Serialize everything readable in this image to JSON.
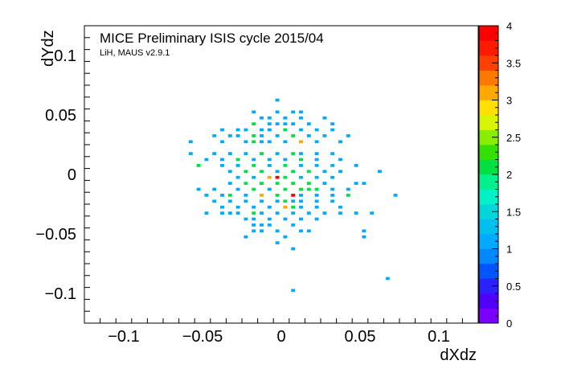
{
  "chart_data": {
    "type": "heatmap",
    "title": "MICE Preliminary ISIS cycle 2015/04",
    "subtitle": "LiH, MAUS v2.9.1",
    "xlabel": "dXdz",
    "ylabel": "dYdz",
    "xlim": [
      -0.125,
      0.125
    ],
    "ylim": [
      -0.125,
      0.125
    ],
    "x_ticks": [
      -0.1,
      -0.05,
      0,
      0.05,
      0.1
    ],
    "y_ticks": [
      -0.1,
      -0.05,
      0,
      0.05,
      0.1
    ],
    "x_tick_labels": [
      "−0.1",
      "−0.05",
      "0",
      "0.05",
      "0.1"
    ],
    "y_tick_labels": [
      "−0.1",
      "−0.05",
      "0",
      "0.05",
      "0.1"
    ],
    "bin_width": 0.0025,
    "zlim": [
      0,
      4
    ],
    "z_ticks": [
      0,
      0.5,
      1,
      1.5,
      2,
      2.5,
      3,
      3.5,
      4
    ],
    "z_tick_labels": [
      "0",
      "0.5",
      "1",
      "1.5",
      "2",
      "2.5",
      "3",
      "3.5",
      "4"
    ],
    "palette": [
      "#7a00ff",
      "#5000ff",
      "#2b22ff",
      "#0055ff",
      "#0088ff",
      "#00aaff",
      "#00bfee",
      "#00d7dd",
      "#00f0c8",
      "#00f090",
      "#00e040",
      "#33e000",
      "#88ee00",
      "#d8f500",
      "#ffe000",
      "#ffa800",
      "#ff7800",
      "#ff4000",
      "#ff1a00",
      "#ff0000"
    ],
    "cells": [
      [
        -0.0025,
        0.0625,
        1
      ],
      [
        -0.0175,
        0.0525,
        1
      ],
      [
        -0.0025,
        0.0525,
        1
      ],
      [
        0.0075,
        0.0525,
        1
      ],
      [
        0.0125,
        0.0525,
        1
      ],
      [
        -0.0125,
        0.0475,
        1
      ],
      [
        -0.0075,
        0.0475,
        1
      ],
      [
        0.0025,
        0.0475,
        1
      ],
      [
        0.0125,
        0.0475,
        1
      ],
      [
        0.0275,
        0.0475,
        1
      ],
      [
        -0.0175,
        0.0425,
        2
      ],
      [
        -0.0075,
        0.0425,
        1
      ],
      [
        -0.0025,
        0.0425,
        1
      ],
      [
        0.0025,
        0.0425,
        1
      ],
      [
        0.0075,
        0.0425,
        1
      ],
      [
        0.0175,
        0.0425,
        1
      ],
      [
        0.0325,
        0.0425,
        1
      ],
      [
        -0.0375,
        0.0375,
        1
      ],
      [
        -0.0275,
        0.0375,
        1
      ],
      [
        -0.0225,
        0.0375,
        1
      ],
      [
        -0.0125,
        0.0375,
        1
      ],
      [
        -0.0075,
        0.0375,
        1
      ],
      [
        0.0025,
        0.0375,
        2
      ],
      [
        0.0125,
        0.0375,
        1
      ],
      [
        0.0225,
        0.0375,
        1
      ],
      [
        0.0325,
        0.0375,
        1
      ],
      [
        -0.0425,
        0.0325,
        1
      ],
      [
        -0.0325,
        0.0325,
        1
      ],
      [
        -0.0275,
        0.0325,
        1
      ],
      [
        -0.0175,
        0.0325,
        2
      ],
      [
        -0.0125,
        0.0325,
        1
      ],
      [
        -0.0025,
        0.0325,
        1
      ],
      [
        0.0075,
        0.0325,
        2
      ],
      [
        0.0175,
        0.0325,
        1
      ],
      [
        0.0275,
        0.0325,
        1
      ],
      [
        0.0425,
        0.0325,
        1
      ],
      [
        -0.0575,
        0.0275,
        1
      ],
      [
        -0.0375,
        0.0275,
        1
      ],
      [
        -0.0225,
        0.0275,
        1
      ],
      [
        -0.0175,
        0.0275,
        2
      ],
      [
        -0.0125,
        0.0275,
        1
      ],
      [
        -0.0075,
        0.0275,
        1
      ],
      [
        0.0025,
        0.0275,
        1
      ],
      [
        0.0125,
        0.0275,
        3
      ],
      [
        0.0225,
        0.0275,
        1
      ],
      [
        0.0375,
        0.0275,
        1
      ],
      [
        -0.0575,
        0.0175,
        1
      ],
      [
        -0.0425,
        0.0175,
        1
      ],
      [
        -0.0325,
        0.0175,
        1
      ],
      [
        -0.0225,
        0.0175,
        1
      ],
      [
        -0.0125,
        0.0175,
        2
      ],
      [
        -0.0025,
        0.0175,
        1
      ],
      [
        0.0075,
        0.0175,
        2
      ],
      [
        0.0125,
        0.0175,
        1
      ],
      [
        0.0225,
        0.0175,
        1
      ],
      [
        0.0325,
        0.0175,
        1
      ],
      [
        -0.0475,
        0.0125,
        1
      ],
      [
        -0.0375,
        0.0125,
        1
      ],
      [
        -0.0275,
        0.0125,
        2
      ],
      [
        -0.0175,
        0.0125,
        1
      ],
      [
        -0.0075,
        0.0125,
        1
      ],
      [
        0.0025,
        0.0125,
        1
      ],
      [
        0.0125,
        0.0125,
        2
      ],
      [
        0.0225,
        0.0125,
        1
      ],
      [
        0.0375,
        0.0125,
        1
      ],
      [
        -0.0525,
        0.0075,
        2
      ],
      [
        -0.0375,
        0.0075,
        1
      ],
      [
        -0.0275,
        0.0075,
        1
      ],
      [
        -0.0175,
        0.0075,
        2
      ],
      [
        -0.0075,
        0.0075,
        1
      ],
      [
        0.0025,
        0.0075,
        2
      ],
      [
        0.0125,
        0.0075,
        1
      ],
      [
        0.0225,
        0.0075,
        1
      ],
      [
        0.0325,
        0.0075,
        1
      ],
      [
        0.0475,
        0.0075,
        1
      ],
      [
        -0.0325,
        0.0025,
        1
      ],
      [
        -0.0225,
        0.0025,
        2
      ],
      [
        -0.0125,
        0.0025,
        2
      ],
      [
        -0.0025,
        0.0025,
        1
      ],
      [
        0.0075,
        0.0025,
        2
      ],
      [
        0.0175,
        0.0025,
        2
      ],
      [
        0.0275,
        0.0025,
        1
      ],
      [
        0.0375,
        0.0025,
        1
      ],
      [
        0.0625,
        0.0025,
        1
      ],
      [
        -0.0275,
        -0.0025,
        1
      ],
      [
        -0.0175,
        -0.0025,
        1
      ],
      [
        -0.0075,
        -0.0025,
        3
      ],
      [
        -0.0025,
        -0.0025,
        4
      ],
      [
        0.0025,
        -0.0025,
        2
      ],
      [
        0.0125,
        -0.0025,
        1
      ],
      [
        0.0225,
        -0.0025,
        1
      ],
      [
        0.0325,
        -0.0025,
        1
      ],
      [
        -0.0325,
        -0.0075,
        1
      ],
      [
        -0.0225,
        -0.0075,
        2
      ],
      [
        -0.0125,
        -0.0075,
        2
      ],
      [
        -0.0025,
        -0.0075,
        2
      ],
      [
        0.0075,
        -0.0075,
        2
      ],
      [
        0.0175,
        -0.0075,
        2
      ],
      [
        0.0275,
        -0.0075,
        1
      ],
      [
        0.0475,
        -0.0075,
        1
      ],
      [
        0.0525,
        -0.0075,
        1
      ],
      [
        -0.0525,
        -0.0125,
        1
      ],
      [
        -0.0425,
        -0.0125,
        1
      ],
      [
        -0.0275,
        -0.0125,
        1
      ],
      [
        -0.0175,
        -0.0125,
        2
      ],
      [
        -0.0075,
        -0.0125,
        1
      ],
      [
        0.0025,
        -0.0125,
        2
      ],
      [
        0.0125,
        -0.0125,
        2
      ],
      [
        0.0175,
        -0.0125,
        2
      ],
      [
        0.0225,
        -0.0125,
        2
      ],
      [
        0.0325,
        -0.0125,
        1
      ],
      [
        0.0425,
        -0.0125,
        1
      ],
      [
        -0.0475,
        -0.0175,
        1
      ],
      [
        -0.0375,
        -0.0175,
        1
      ],
      [
        -0.0325,
        -0.0175,
        2
      ],
      [
        -0.0225,
        -0.0175,
        1
      ],
      [
        -0.0125,
        -0.0175,
        3
      ],
      [
        -0.0025,
        -0.0175,
        2
      ],
      [
        0.0075,
        -0.0175,
        4
      ],
      [
        0.0125,
        -0.0175,
        1
      ],
      [
        0.0225,
        -0.0175,
        1
      ],
      [
        0.0325,
        -0.0175,
        1
      ],
      [
        0.0425,
        -0.0175,
        2
      ],
      [
        0.0725,
        -0.0175,
        1
      ],
      [
        -0.0425,
        -0.0225,
        1
      ],
      [
        -0.0325,
        -0.0225,
        1
      ],
      [
        -0.0225,
        -0.0225,
        1
      ],
      [
        -0.0125,
        -0.0225,
        1
      ],
      [
        -0.0025,
        -0.0225,
        1
      ],
      [
        0.0025,
        -0.0225,
        2
      ],
      [
        0.0075,
        -0.0225,
        1
      ],
      [
        0.0125,
        -0.0225,
        1
      ],
      [
        0.0225,
        -0.0225,
        1
      ],
      [
        0.0325,
        -0.0225,
        1
      ],
      [
        -0.0375,
        -0.0275,
        1
      ],
      [
        -0.0275,
        -0.0275,
        1
      ],
      [
        -0.0175,
        -0.0275,
        1
      ],
      [
        -0.0075,
        -0.0275,
        1
      ],
      [
        0.0025,
        -0.0275,
        3
      ],
      [
        0.0075,
        -0.0275,
        2
      ],
      [
        0.0125,
        -0.0275,
        1
      ],
      [
        0.0225,
        -0.0275,
        1
      ],
      [
        0.0375,
        -0.0275,
        1
      ],
      [
        -0.0325,
        -0.0325,
        1
      ],
      [
        -0.0275,
        -0.0325,
        1
      ],
      [
        -0.0175,
        -0.0325,
        2
      ],
      [
        -0.0125,
        -0.0325,
        1
      ],
      [
        -0.0025,
        -0.0325,
        1
      ],
      [
        0.0075,
        -0.0325,
        1
      ],
      [
        0.0175,
        -0.0325,
        1
      ],
      [
        0.0275,
        -0.0325,
        1
      ],
      [
        0.0575,
        -0.0325,
        1
      ],
      [
        -0.0475,
        -0.0325,
        1
      ],
      [
        -0.0375,
        -0.0325,
        1
      ],
      [
        0.0375,
        -0.0325,
        1
      ],
      [
        0.0475,
        -0.0325,
        1
      ],
      [
        -0.0225,
        -0.0375,
        1
      ],
      [
        -0.0175,
        -0.0375,
        1
      ],
      [
        -0.0075,
        -0.0375,
        1
      ],
      [
        0.0025,
        -0.0375,
        1
      ],
      [
        0.0125,
        -0.0375,
        1
      ],
      [
        0.0225,
        -0.0375,
        1
      ],
      [
        -0.0125,
        -0.0425,
        1
      ],
      [
        -0.0075,
        -0.0425,
        1
      ],
      [
        -0.0175,
        -0.0425,
        1
      ],
      [
        0.0075,
        -0.0425,
        1
      ],
      [
        -0.0175,
        -0.0475,
        1
      ],
      [
        -0.0125,
        -0.0475,
        1
      ],
      [
        -0.0025,
        -0.0475,
        1
      ],
      [
        0.0125,
        -0.0475,
        1
      ],
      [
        0.0175,
        -0.0475,
        1
      ],
      [
        -0.0225,
        -0.0525,
        1
      ],
      [
        0.0025,
        -0.0525,
        1
      ],
      [
        0.0525,
        -0.0475,
        1
      ],
      [
        0.0525,
        -0.0525,
        1
      ],
      [
        -0.0025,
        -0.0575,
        1
      ],
      [
        0.0075,
        -0.0625,
        1
      ],
      [
        0.0675,
        -0.0875,
        1
      ],
      [
        0.0075,
        -0.0975,
        1
      ]
    ]
  }
}
